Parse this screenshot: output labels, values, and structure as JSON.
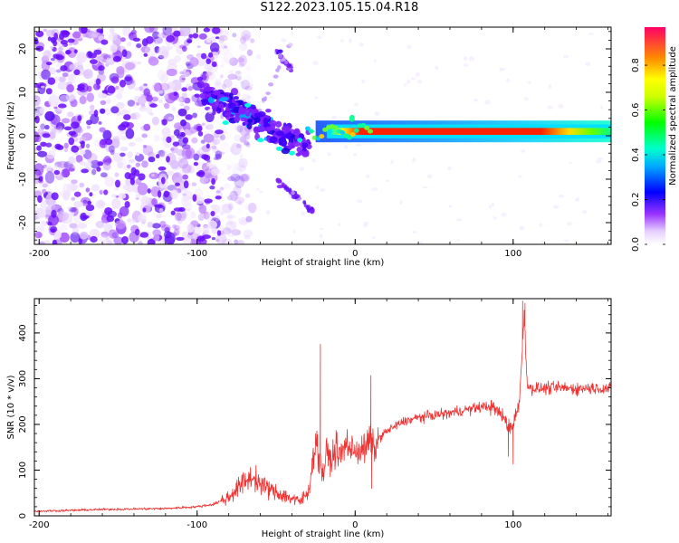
{
  "title": "S122.2023.105.15.04.R18",
  "chart_data": [
    {
      "type": "heatmap",
      "xlabel": "Height of straight line (km)",
      "ylabel": "Frequency (Hz)",
      "xlim": [
        -203,
        162
      ],
      "ylim": [
        -25,
        25
      ],
      "xticks": [
        -200,
        -100,
        0,
        100
      ],
      "yticks": [
        -20,
        -10,
        0,
        10,
        20
      ],
      "colorbar": {
        "label": "Normalized spectral amplitude",
        "range": [
          0,
          0.97
        ],
        "ticks": [
          0.0,
          0.2,
          0.4,
          0.6,
          0.8
        ]
      },
      "features": {
        "noise_region_x": [
          -203,
          -85
        ],
        "chirp_start": {
          "x": -95,
          "y": 10
        },
        "chirp_end": {
          "x": -30,
          "y": -3
        },
        "ghost_upper": {
          "x": [
            -50,
            -40
          ],
          "y": [
            20,
            15
          ]
        },
        "ghost_lower": {
          "x": [
            -50,
            -25
          ],
          "y": [
            -10,
            -18
          ]
        },
        "carrier_start_x": -20,
        "carrier_end_x": 162,
        "carrier_frequency": 1,
        "carrier_peak_amplitude": 0.95
      }
    },
    {
      "type": "line",
      "xlabel": "Height of straight line (km)",
      "ylabel": "SNR (10 * v/v)",
      "xlim": [
        -203,
        162
      ],
      "ylim": [
        0,
        475
      ],
      "xticks": [
        -200,
        -100,
        0,
        100
      ],
      "yticks": [
        0,
        100,
        200,
        300,
        400
      ],
      "color": "#ee3333",
      "series": [
        {
          "x": [
            -203,
            -180,
            -160,
            -140,
            -120,
            -100,
            -90,
            -80,
            -75,
            -70,
            -65,
            -60,
            -55,
            -50,
            -45,
            -40,
            -35,
            -30,
            -27,
            -25,
            -23,
            -20,
            -18,
            -15,
            -12,
            -10,
            -8,
            -5,
            -2,
            0,
            2,
            5,
            8,
            10,
            12,
            15,
            20,
            25,
            30,
            40,
            50,
            60,
            70,
            80,
            85,
            90,
            95,
            98,
            100,
            102,
            104,
            106,
            107,
            108,
            109,
            110,
            115,
            120,
            130,
            140,
            150,
            162
          ],
          "y": [
            10,
            12,
            14,
            15,
            16,
            20,
            25,
            40,
            60,
            75,
            85,
            70,
            60,
            50,
            45,
            38,
            30,
            50,
            110,
            170,
            130,
            90,
            140,
            120,
            150,
            130,
            140,
            160,
            140,
            150,
            140,
            145,
            155,
            170,
            140,
            170,
            185,
            195,
            205,
            215,
            220,
            225,
            232,
            238,
            240,
            230,
            210,
            190,
            200,
            230,
            245,
            380,
            440,
            360,
            285,
            280,
            278,
            279,
            280,
            278,
            280,
            278
          ],
          "spikes": [
            {
              "x": -22,
              "y": 375
            },
            {
              "x": 10,
              "y": 307
            },
            {
              "x": 10.5,
              "y": 60
            },
            {
              "x": 97,
              "y": 130
            },
            {
              "x": 100,
              "y": 113
            },
            {
              "x": 106,
              "y": 470
            },
            {
              "x": 107.5,
              "y": 465
            }
          ]
        }
      ]
    }
  ]
}
